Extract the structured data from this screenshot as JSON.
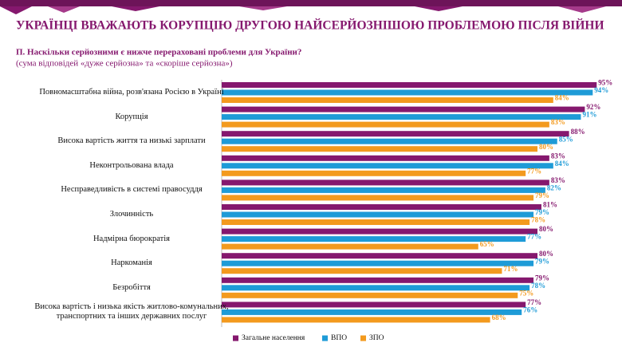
{
  "chart_data": {
    "type": "barh",
    "title": "УКРАЇНЦІ ВВАЖАЮТЬ КОРУПЦІЮ ДРУГОЮ НАЙСЕРЙОЗНІШОЮ ПРОБЛЕМОЮ ПІСЛЯ ВІЙНИ",
    "subtitle": "П. Наскільки серйозними є нижче перераховані проблеми для України?",
    "note": "(сума відповідей «дуже серйозна» та «скоріше серйозна»)",
    "categories": [
      "Повномасштабна війна, розв'язана Росією в Україні",
      "Корупція",
      "Висока вартість життя та низькі зарплати",
      "Неконтрольована влада",
      "Несправедливість в системі правосуддя",
      "Злочинність",
      "Надмірна бюрократія",
      "Наркоманія",
      "Безробіття",
      "Висока вартість і низька якість житлово-комунальних, транспортних та інших державних послуг"
    ],
    "series": [
      {
        "name": "Загальне населення",
        "color": "#85186e",
        "values": [
          95,
          92,
          88,
          83,
          83,
          81,
          80,
          80,
          79,
          77
        ],
        "value_labels": [
          "95%",
          "92%",
          "88%",
          "83%",
          "83%",
          "81%",
          "80%",
          "80%",
          "79%",
          "77%"
        ]
      },
      {
        "name": "ВПО",
        "color": "#1e9bd7",
        "values": [
          94,
          91,
          85,
          84,
          82,
          79,
          77,
          79,
          78,
          76
        ],
        "value_labels": [
          "94%",
          "91%",
          "85%",
          "84%",
          "82%",
          "79%",
          "77%",
          "79%",
          "78%",
          "76%"
        ]
      },
      {
        "name": "ЗПО",
        "color": "#f39a1e",
        "values": [
          84,
          83,
          80,
          77,
          79,
          78,
          65,
          71,
          75,
          68
        ],
        "value_labels": [
          "84%",
          "83%",
          "80%",
          "77%",
          "79%",
          "78%",
          "65%",
          "71%",
          "75%",
          "68%"
        ]
      }
    ],
    "xlim": [
      0,
      100
    ],
    "legend": "bottom"
  }
}
